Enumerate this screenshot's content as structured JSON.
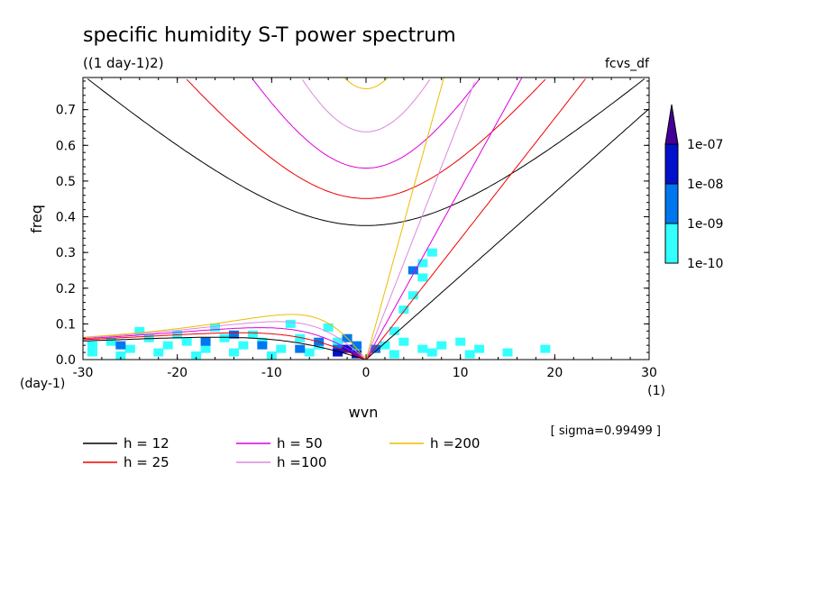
{
  "chart_data": {
    "type": "heatmap",
    "title": "specific humidity S-T power spectrum",
    "subtitle": "((1 day-1)2)",
    "tag": "fcvs_df",
    "xlabel": "wvn",
    "ylabel": "freq",
    "x_unit": "(1)",
    "y_unit": "(day-1)",
    "sigma_note": "[ sigma=0.99499 ]",
    "xlim": [
      -30,
      30
    ],
    "ylim": [
      0,
      0.79
    ],
    "x_ticks": [
      -30,
      -20,
      -10,
      0,
      10,
      20,
      30
    ],
    "x_tick_labels": [
      "-30",
      "-20",
      "-10",
      "0",
      "10",
      "20",
      "30"
    ],
    "y_ticks": [
      0,
      0.1,
      0.2,
      0.3,
      0.4,
      0.5,
      0.6,
      0.7
    ],
    "y_tick_labels": [
      "0.0",
      "0.1",
      "0.2",
      "0.3",
      "0.4",
      "0.5",
      "0.6",
      "0.7"
    ],
    "colorbar": {
      "labels": [
        "1e-10",
        "1e-09",
        "1e-08",
        "1e-07"
      ],
      "colors": [
        "#33ffff",
        "#0077ee",
        "#0011cc",
        "#440099"
      ]
    },
    "dispersion_curves": [
      {
        "name": "h = 12",
        "h": 12,
        "color": "#000000"
      },
      {
        "name": "h = 25",
        "h": 25,
        "color": "#ee0000"
      },
      {
        "name": "h = 50",
        "h": 50,
        "color": "#dd00dd"
      },
      {
        "name": "h =100",
        "h": 100,
        "color": "#dd88dd"
      },
      {
        "name": "h =200",
        "h": 200,
        "color": "#eebb00"
      }
    ],
    "heatmap_cells": [
      {
        "k": -29,
        "f": 0.04,
        "level": 0
      },
      {
        "k": -27,
        "f": 0.05,
        "level": 0
      },
      {
        "k": -25,
        "f": 0.03,
        "level": 0
      },
      {
        "k": -23,
        "f": 0.06,
        "level": 0
      },
      {
        "k": -21,
        "f": 0.04,
        "level": 0
      },
      {
        "k": -19,
        "f": 0.05,
        "level": 0
      },
      {
        "k": -17,
        "f": 0.03,
        "level": 0
      },
      {
        "k": -15,
        "f": 0.06,
        "level": 0
      },
      {
        "k": -13,
        "f": 0.04,
        "level": 0
      },
      {
        "k": -11,
        "f": 0.05,
        "level": 0
      },
      {
        "k": -9,
        "f": 0.03,
        "level": 0
      },
      {
        "k": -7,
        "f": 0.06,
        "level": 0
      },
      {
        "k": -5,
        "f": 0.04,
        "level": 0
      },
      {
        "k": -3,
        "f": 0.05,
        "level": 0
      },
      {
        "k": -1,
        "f": 0.02,
        "level": 0
      },
      {
        "k": 2,
        "f": 0.04,
        "level": 0
      },
      {
        "k": 4,
        "f": 0.05,
        "level": 0
      },
      {
        "k": 6,
        "f": 0.03,
        "level": 0
      },
      {
        "k": 8,
        "f": 0.04,
        "level": 0
      },
      {
        "k": 10,
        "f": 0.05,
        "level": 0
      },
      {
        "k": 12,
        "f": 0.03,
        "level": 0
      },
      {
        "k": 15,
        "f": 0.02,
        "level": 0
      },
      {
        "k": 19,
        "f": 0.03,
        "level": 0
      },
      {
        "k": -29,
        "f": 0.02,
        "level": 0
      },
      {
        "k": -26,
        "f": 0.01,
        "level": 0
      },
      {
        "k": -22,
        "f": 0.02,
        "level": 0
      },
      {
        "k": -18,
        "f": 0.01,
        "level": 0
      },
      {
        "k": -14,
        "f": 0.02,
        "level": 0
      },
      {
        "k": -10,
        "f": 0.01,
        "level": 0
      },
      {
        "k": -6,
        "f": 0.02,
        "level": 0
      },
      {
        "k": 3,
        "f": 0.015,
        "level": 0
      },
      {
        "k": 7,
        "f": 0.02,
        "level": 0
      },
      {
        "k": 11,
        "f": 0.015,
        "level": 0
      },
      {
        "k": -24,
        "f": 0.08,
        "level": 0
      },
      {
        "k": -16,
        "f": 0.09,
        "level": 0
      },
      {
        "k": -8,
        "f": 0.1,
        "level": 0
      },
      {
        "k": -4,
        "f": 0.09,
        "level": 0
      },
      {
        "k": -12,
        "f": 0.07,
        "level": 0
      },
      {
        "k": -20,
        "f": 0.07,
        "level": 0
      },
      {
        "k": 4,
        "f": 0.14,
        "level": 0
      },
      {
        "k": 5,
        "f": 0.18,
        "level": 0
      },
      {
        "k": 6,
        "f": 0.23,
        "level": 0
      },
      {
        "k": 6,
        "f": 0.27,
        "level": 0
      },
      {
        "k": 7,
        "f": 0.3,
        "level": 0
      },
      {
        "k": 3,
        "f": 0.08,
        "level": 0
      },
      {
        "k": -7,
        "f": 0.03,
        "level": 1
      },
      {
        "k": -5,
        "f": 0.05,
        "level": 1
      },
      {
        "k": -3,
        "f": 0.03,
        "level": 1
      },
      {
        "k": -2,
        "f": 0.06,
        "level": 1
      },
      {
        "k": -1,
        "f": 0.04,
        "level": 1
      },
      {
        "k": 1,
        "f": 0.03,
        "level": 1
      },
      {
        "k": -11,
        "f": 0.04,
        "level": 1
      },
      {
        "k": -17,
        "f": 0.05,
        "level": 1
      },
      {
        "k": -26,
        "f": 0.04,
        "level": 1
      },
      {
        "k": -14,
        "f": 0.07,
        "level": 1
      },
      {
        "k": 5,
        "f": 0.25,
        "level": 1
      },
      {
        "k": -2,
        "f": 0.03,
        "level": 2
      },
      {
        "k": -3,
        "f": 0.02,
        "level": 2
      },
      {
        "k": -1,
        "f": 0.015,
        "level": 2
      }
    ]
  }
}
